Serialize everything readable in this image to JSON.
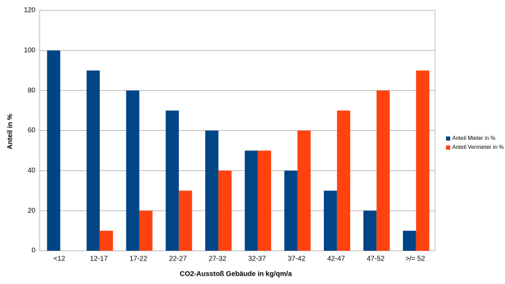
{
  "chart_data": {
    "type": "grouped-bar",
    "x_label": "CO2-Ausstoß Gebäude in kg/qm/a",
    "y_label": "Anteil in %",
    "categories": [
      "<12",
      "12-17",
      "17-22",
      "22-27",
      "27-32",
      "32-37",
      "37-42",
      "42-47",
      "47-52",
      ">/= 52"
    ],
    "series": [
      {
        "name": "Anteil Mieter in %",
        "color": "#004586",
        "values": [
          100,
          90,
          80,
          70,
          60,
          50,
          40,
          30,
          20,
          10
        ]
      },
      {
        "name": "Anteil Vermieter in %",
        "color": "#ff420e",
        "values": [
          0,
          10,
          20,
          30,
          40,
          50,
          60,
          70,
          80,
          90
        ]
      }
    ],
    "ylim": [
      0,
      120
    ],
    "yticks": [
      0,
      20,
      40,
      60,
      80,
      100,
      120
    ],
    "grid": true,
    "legend": "right"
  }
}
